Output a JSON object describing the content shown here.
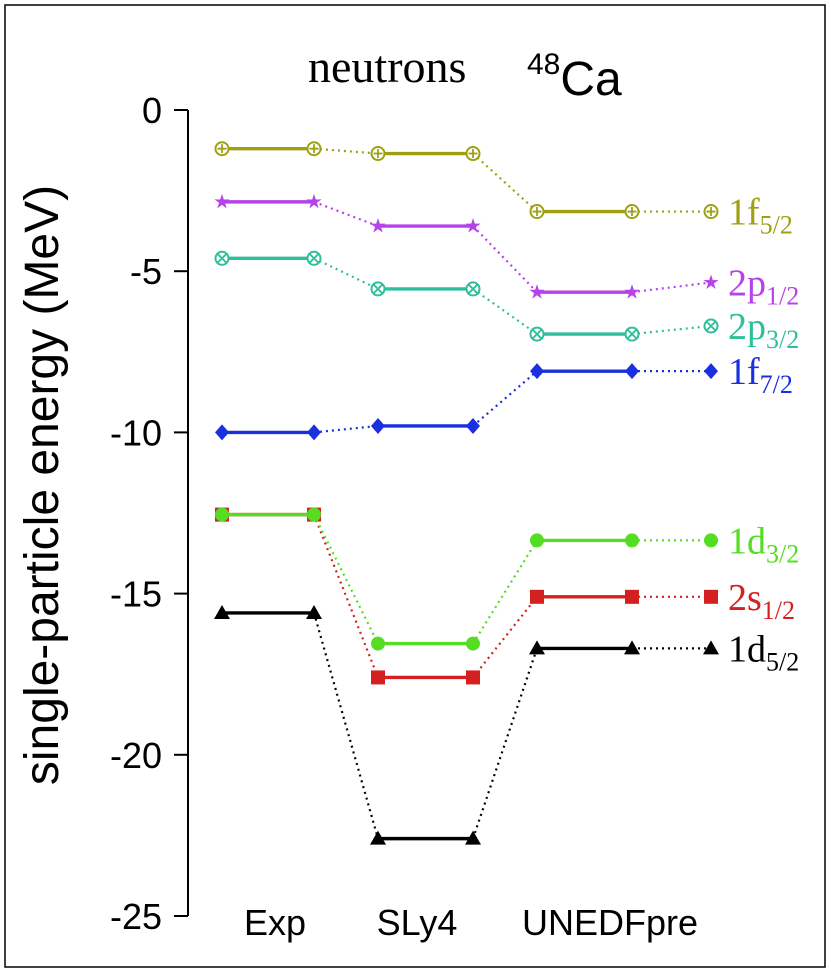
{
  "chart_data": {
    "type": "line",
    "title": {
      "text": "neutrons",
      "nucleus_mass": "48",
      "nucleus_symbol": "Ca"
    },
    "xlabel": "",
    "ylabel": "single-particle energy (MeV)",
    "ylim": [
      -25,
      0
    ],
    "yticks": [
      0,
      -5,
      -10,
      -15,
      -20,
      -25
    ],
    "grid": false,
    "categories": [
      "Exp",
      "SLy4",
      "UNEDFpre"
    ],
    "series": [
      {
        "name": "1d5/2",
        "label_main": "1d",
        "label_sub": "5/2",
        "color": "#000000",
        "marker": "triangle",
        "values": [
          -15.6,
          -22.6,
          -16.7
        ],
        "end_value": -16.7
      },
      {
        "name": "2s1/2",
        "label_main": "2s",
        "label_sub": "1/2",
        "color": "#d42020",
        "marker": "square",
        "values": [
          -12.55,
          -17.6,
          -15.1
        ],
        "end_value": -15.1
      },
      {
        "name": "1d3/2",
        "label_main": "1d",
        "label_sub": "3/2",
        "color": "#55dd22",
        "marker": "circle",
        "values": [
          -12.55,
          -16.55,
          -13.35
        ],
        "end_value": -13.35
      },
      {
        "name": "1f7/2",
        "label_main": "1f",
        "label_sub": "7/2",
        "color": "#1a2fe0",
        "marker": "diamond",
        "values": [
          -10.0,
          -9.8,
          -8.1
        ],
        "end_value": -8.1
      },
      {
        "name": "2p3/2",
        "label_main": "2p",
        "label_sub": "3/2",
        "color": "#2fbf9a",
        "marker": "circle-x",
        "values": [
          -4.6,
          -5.55,
          -6.95
        ],
        "end_value": -6.7
      },
      {
        "name": "2p1/2",
        "label_main": "2p",
        "label_sub": "1/2",
        "color": "#b543e8",
        "marker": "star",
        "values": [
          -2.85,
          -3.6,
          -5.65
        ],
        "end_value": -5.35
      },
      {
        "name": "1f5/2",
        "label_main": "1f",
        "label_sub": "5/2",
        "color": "#9ea012",
        "marker": "circle-plus",
        "values": [
          -1.2,
          -1.35,
          -3.15
        ],
        "end_value": -3.15
      }
    ],
    "legend": "inline-right"
  }
}
